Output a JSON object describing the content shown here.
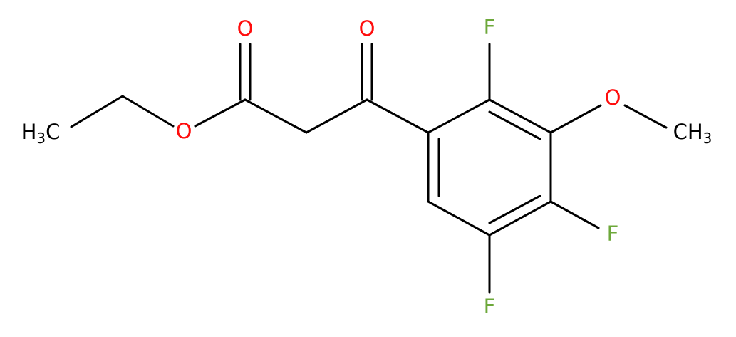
{
  "atoms": [
    {
      "label": [
        "H",
        "3",
        "C"
      ]
    },
    {
      "label": [
        "O"
      ]
    },
    {
      "label": [
        "O"
      ]
    },
    {
      "label": [
        "O"
      ]
    },
    {
      "label": [
        "F"
      ]
    },
    {
      "label": [
        "O"
      ]
    },
    {
      "label": [
        "CH",
        "3"
      ]
    },
    {
      "label": [
        "F"
      ]
    },
    {
      "label": [
        "F"
      ]
    }
  ]
}
